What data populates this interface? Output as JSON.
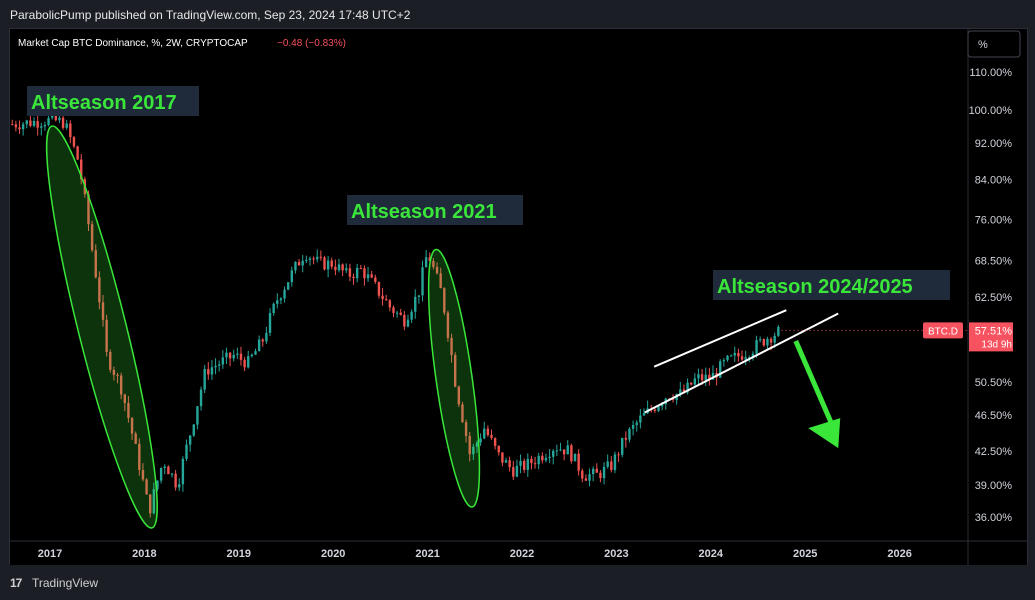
{
  "header": {
    "publisher": "ParabolicPump published on TradingView.com, Sep 23, 2024 17:48 UTC+2"
  },
  "legend": {
    "symbol": "Market Cap BTC Dominance, %, 2W, CRYPTOCAP",
    "change": "−0.48 (−0.83%)",
    "change_color": "#f7525f"
  },
  "scale_button": "%",
  "footer": {
    "logo": "17",
    "brand": "TradingView"
  },
  "price_tag": {
    "ticker": "BTC.D",
    "value": "57.51%",
    "countdown": "13d 9h",
    "color": "#f7525f"
  },
  "annotations": [
    {
      "text": "Altseason 2017"
    },
    {
      "text": "Altseason 2021"
    },
    {
      "text": "Altseason 2024/2025"
    }
  ],
  "colors": {
    "up": "#26a69a",
    "down": "#ef5350",
    "highlight": "#39e639",
    "label_bg": "#1f2a3a"
  },
  "chart_data": {
    "type": "candlestick",
    "x_axis": {
      "ticks": [
        "2017",
        "2018",
        "2019",
        "2020",
        "2021",
        "2022",
        "2023",
        "2024",
        "2025",
        "2026"
      ]
    },
    "y_axis": {
      "scale": "log",
      "ticks": [
        "110.00%",
        "100.00%",
        "92.00%",
        "84.00%",
        "76.00%",
        "68.50%",
        "62.50%",
        "57.51%",
        "50.50%",
        "46.50%",
        "42.50%",
        "39.00%",
        "36.00%"
      ]
    },
    "series_path": [
      [
        2016.6,
        96.5
      ],
      [
        2017.0,
        97.5
      ],
      [
        2017.15,
        97.0
      ],
      [
        2017.3,
        88
      ],
      [
        2017.45,
        70
      ],
      [
        2017.6,
        54
      ],
      [
        2017.75,
        50
      ],
      [
        2017.9,
        43
      ],
      [
        2018.05,
        36.5
      ],
      [
        2018.2,
        41.5
      ],
      [
        2018.35,
        39
      ],
      [
        2018.5,
        45
      ],
      [
        2018.65,
        52
      ],
      [
        2018.8,
        53
      ],
      [
        2018.95,
        54
      ],
      [
        2019.1,
        53
      ],
      [
        2019.25,
        56
      ],
      [
        2019.4,
        62
      ],
      [
        2019.55,
        66
      ],
      [
        2019.7,
        70
      ],
      [
        2019.85,
        68
      ],
      [
        2020.0,
        68
      ],
      [
        2020.15,
        66
      ],
      [
        2020.3,
        67
      ],
      [
        2020.45,
        64
      ],
      [
        2020.6,
        61
      ],
      [
        2020.75,
        59
      ],
      [
        2020.9,
        63
      ],
      [
        2021.0,
        70
      ],
      [
        2021.15,
        63
      ],
      [
        2021.3,
        50
      ],
      [
        2021.45,
        42
      ],
      [
        2021.6,
        45
      ],
      [
        2021.75,
        42
      ],
      [
        2021.9,
        40.5
      ],
      [
        2022.05,
        41
      ],
      [
        2022.2,
        42
      ],
      [
        2022.35,
        43
      ],
      [
        2022.5,
        42.5
      ],
      [
        2022.65,
        40
      ],
      [
        2022.8,
        40
      ],
      [
        2022.95,
        41
      ],
      [
        2023.1,
        44
      ],
      [
        2023.25,
        46
      ],
      [
        2023.4,
        47.5
      ],
      [
        2023.55,
        49
      ],
      [
        2023.7,
        49
      ],
      [
        2023.85,
        51
      ],
      [
        2024.0,
        51
      ],
      [
        2024.15,
        53
      ],
      [
        2024.3,
        54
      ],
      [
        2024.45,
        55
      ],
      [
        2024.6,
        56.5
      ],
      [
        2024.75,
        57.5
      ]
    ]
  }
}
